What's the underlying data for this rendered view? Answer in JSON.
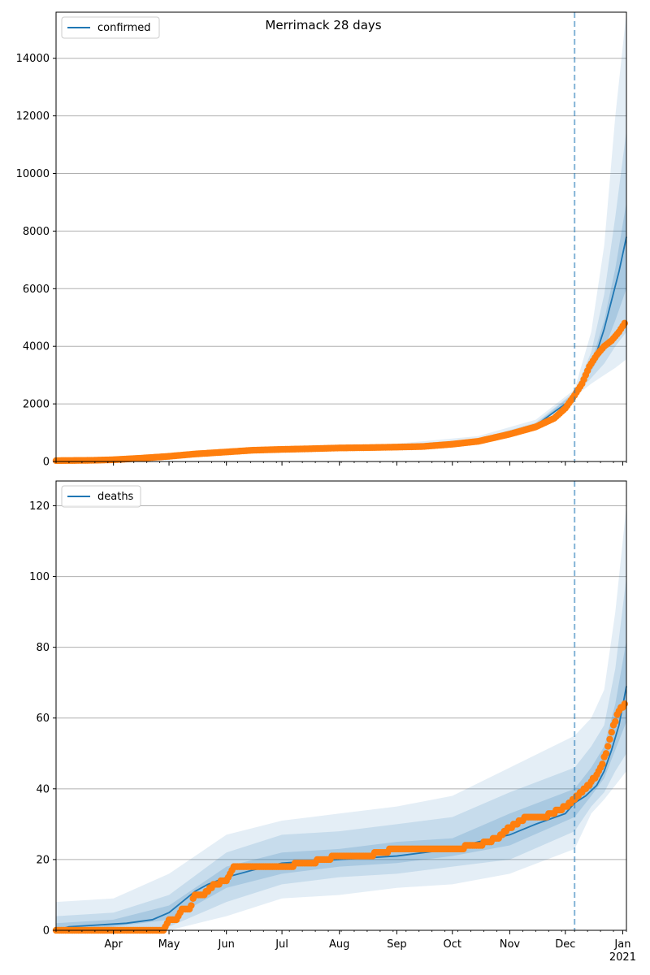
{
  "chart_data": [
    {
      "type": "line",
      "title": "Merrimack 28 days",
      "xlabel": "",
      "ylabel": "",
      "x_range": [
        "2020-03-01",
        "2021-01-03"
      ],
      "ylim": [
        0,
        15600
      ],
      "yticks": [
        0,
        2000,
        4000,
        6000,
        8000,
        10000,
        12000,
        14000
      ],
      "grid": "y",
      "legend": {
        "placement": "top-left",
        "entries": [
          "confirmed"
        ]
      },
      "forecast_start": "2020-12-06",
      "series": [
        {
          "name": "confirmed",
          "kind": "model-median",
          "color": "#1f77b4",
          "x": [
            "2020-03-01",
            "2020-04-01",
            "2020-05-01",
            "2020-06-01",
            "2020-07-01",
            "2020-08-01",
            "2020-09-01",
            "2020-10-01",
            "2020-10-15",
            "2020-11-01",
            "2020-11-15",
            "2020-12-01",
            "2020-12-06",
            "2020-12-12",
            "2020-12-18",
            "2020-12-22",
            "2020-12-26",
            "2020-12-30",
            "2021-01-03"
          ],
          "values": [
            30,
            50,
            170,
            340,
            440,
            480,
            540,
            630,
            720,
            950,
            1250,
            2000,
            2350,
            2900,
            3800,
            4600,
            5600,
            6600,
            7800
          ]
        },
        {
          "name": "observed",
          "kind": "observed-points",
          "color": "#ff7f0e",
          "x": [
            "2020-03-01",
            "2020-03-20",
            "2020-04-01",
            "2020-04-15",
            "2020-05-01",
            "2020-05-15",
            "2020-06-01",
            "2020-06-15",
            "2020-07-01",
            "2020-07-15",
            "2020-08-01",
            "2020-08-15",
            "2020-09-01",
            "2020-09-15",
            "2020-10-01",
            "2020-10-15",
            "2020-11-01",
            "2020-11-15",
            "2020-11-25",
            "2020-12-01",
            "2020-12-06",
            "2020-12-10",
            "2020-12-14",
            "2020-12-18",
            "2020-12-22",
            "2020-12-26",
            "2020-12-30",
            "2021-01-02"
          ],
          "values": [
            30,
            40,
            60,
            110,
            180,
            260,
            330,
            390,
            420,
            440,
            470,
            480,
            500,
            520,
            600,
            700,
            950,
            1200,
            1500,
            1850,
            2300,
            2700,
            3300,
            3700,
            4000,
            4200,
            4500,
            4800
          ]
        }
      ],
      "bands": [
        {
          "level": "outer",
          "color": "#1f77b4",
          "opacity": 0.12,
          "x": [
            "2020-03-01",
            "2020-06-01",
            "2020-09-01",
            "2020-10-15",
            "2020-11-15",
            "2020-12-06",
            "2020-12-15",
            "2020-12-22",
            "2020-12-28",
            "2021-01-03"
          ],
          "lower": [
            20,
            300,
            480,
            620,
            1100,
            2250,
            2700,
            3000,
            3250,
            3550
          ],
          "upper": [
            60,
            380,
            620,
            880,
            1450,
            2500,
            4500,
            7500,
            12000,
            15600
          ]
        },
        {
          "level": "middle",
          "color": "#1f77b4",
          "opacity": 0.15,
          "x": [
            "2020-03-01",
            "2020-06-01",
            "2020-09-01",
            "2020-10-15",
            "2020-11-15",
            "2020-12-06",
            "2020-12-15",
            "2020-12-22",
            "2020-12-28",
            "2021-01-03"
          ],
          "lower": [
            25,
            315,
            510,
            670,
            1170,
            2300,
            2900,
            3400,
            4000,
            4500
          ],
          "upper": [
            45,
            365,
            580,
            780,
            1350,
            2420,
            3800,
            5800,
            8500,
            11500
          ]
        },
        {
          "level": "inner",
          "color": "#1f77b4",
          "opacity": 0.18,
          "x": [
            "2020-03-01",
            "2020-06-01",
            "2020-09-01",
            "2020-10-15",
            "2020-11-15",
            "2020-12-06",
            "2020-12-15",
            "2020-12-22",
            "2020-12-28",
            "2021-01-03"
          ],
          "lower": [
            28,
            330,
            525,
            695,
            1210,
            2330,
            3150,
            3900,
            4900,
            6000
          ],
          "upper": [
            38,
            350,
            560,
            745,
            1300,
            2380,
            3450,
            4900,
            6700,
            9000
          ]
        }
      ]
    },
    {
      "type": "line",
      "title": "",
      "xlabel": "",
      "ylabel": "",
      "x_range": [
        "2020-03-01",
        "2021-01-03"
      ],
      "ylim": [
        0,
        127
      ],
      "yticks": [
        0,
        20,
        40,
        60,
        80,
        100,
        120
      ],
      "grid": "y",
      "legend": {
        "placement": "top-left",
        "entries": [
          "deaths"
        ]
      },
      "forecast_start": "2020-12-06",
      "xticks": [
        "Apr",
        "May",
        "Jun",
        "Jul",
        "Aug",
        "Sep",
        "Oct",
        "Nov",
        "Dec",
        "Jan"
      ],
      "xtick_dates": [
        "2020-04-01",
        "2020-05-01",
        "2020-06-01",
        "2020-07-01",
        "2020-08-01",
        "2020-09-01",
        "2020-10-01",
        "2020-11-01",
        "2020-12-01",
        "2021-01-01"
      ],
      "year_label": "2021",
      "series": [
        {
          "name": "deaths",
          "kind": "model-median",
          "color": "#1f77b4",
          "x": [
            "2020-03-01",
            "2020-03-08",
            "2020-04-08",
            "2020-04-22",
            "2020-05-01",
            "2020-05-08",
            "2020-05-15",
            "2020-05-22",
            "2020-06-01",
            "2020-06-15",
            "2020-07-01",
            "2020-08-01",
            "2020-09-01",
            "2020-10-01",
            "2020-10-15",
            "2020-11-01",
            "2020-11-15",
            "2020-12-01",
            "2020-12-06",
            "2020-12-12",
            "2020-12-18",
            "2020-12-22",
            "2020-12-26",
            "2020-12-30",
            "2021-01-03"
          ],
          "values": [
            0,
            1,
            2,
            3,
            5,
            8,
            11,
            13,
            15,
            17,
            19,
            20,
            21,
            23,
            25,
            27,
            30,
            33,
            36,
            38,
            41,
            45,
            51,
            58,
            69
          ]
        },
        {
          "name": "observed",
          "kind": "observed-points",
          "color": "#ff7f0e",
          "x": [
            "2020-03-01",
            "2020-03-15",
            "2020-04-01",
            "2020-04-15",
            "2020-04-28",
            "2020-05-01",
            "2020-05-05",
            "2020-05-08",
            "2020-05-12",
            "2020-05-15",
            "2020-05-20",
            "2020-05-25",
            "2020-06-01",
            "2020-06-05",
            "2020-06-15",
            "2020-07-01",
            "2020-07-15",
            "2020-08-01",
            "2020-08-15",
            "2020-09-01",
            "2020-09-15",
            "2020-10-01",
            "2020-10-15",
            "2020-10-25",
            "2020-11-01",
            "2020-11-10",
            "2020-11-20",
            "2020-12-01",
            "2020-12-06",
            "2020-12-10",
            "2020-12-14",
            "2020-12-18",
            "2020-12-21",
            "2020-12-24",
            "2020-12-27",
            "2020-12-30",
            "2021-01-02"
          ],
          "values": [
            0,
            0,
            0,
            0,
            0,
            3,
            3,
            6,
            6,
            10,
            10,
            13,
            14,
            18,
            18,
            18,
            19,
            21,
            21,
            23,
            23,
            23,
            24,
            26,
            29,
            32,
            32,
            35,
            37,
            39,
            41,
            44,
            47,
            52,
            58,
            62,
            64
          ]
        }
      ],
      "bands": [
        {
          "level": "outer",
          "color": "#1f77b4",
          "opacity": 0.12,
          "x": [
            "2020-03-01",
            "2020-04-01",
            "2020-05-01",
            "2020-06-01",
            "2020-07-01",
            "2020-08-01",
            "2020-09-01",
            "2020-10-01",
            "2020-11-01",
            "2020-12-06",
            "2020-12-15",
            "2020-12-22",
            "2020-12-28",
            "2021-01-03"
          ],
          "lower": [
            0,
            0,
            0,
            4,
            9,
            10,
            12,
            13,
            16,
            23,
            33,
            37,
            41,
            45
          ],
          "upper": [
            8,
            9,
            16,
            27,
            31,
            33,
            35,
            38,
            46,
            55,
            60,
            68,
            90,
            120
          ]
        },
        {
          "level": "middle",
          "color": "#1f77b4",
          "opacity": 0.15,
          "x": [
            "2020-03-01",
            "2020-04-01",
            "2020-05-01",
            "2020-06-01",
            "2020-07-01",
            "2020-08-01",
            "2020-09-01",
            "2020-10-01",
            "2020-11-01",
            "2020-12-06",
            "2020-12-15",
            "2020-12-22",
            "2020-12-28",
            "2021-01-03"
          ],
          "lower": [
            0,
            0,
            1,
            8,
            13,
            15,
            16,
            18,
            20,
            28,
            35,
            39,
            45,
            50
          ],
          "upper": [
            4,
            5,
            10,
            22,
            27,
            28,
            30,
            32,
            39,
            46,
            52,
            58,
            74,
            100
          ]
        },
        {
          "level": "inner",
          "color": "#1f77b4",
          "opacity": 0.18,
          "x": [
            "2020-03-01",
            "2020-04-01",
            "2020-05-01",
            "2020-06-01",
            "2020-07-01",
            "2020-08-01",
            "2020-09-01",
            "2020-10-01",
            "2020-11-01",
            "2020-12-06",
            "2020-12-15",
            "2020-12-22",
            "2020-12-28",
            "2021-01-03"
          ],
          "lower": [
            0,
            1,
            3,
            12,
            16,
            18,
            19,
            21,
            24,
            32,
            38,
            43,
            51,
            59
          ],
          "upper": [
            2,
            3,
            7,
            18,
            22,
            23,
            25,
            26,
            33,
            40,
            46,
            52,
            64,
            82
          ]
        }
      ]
    }
  ]
}
